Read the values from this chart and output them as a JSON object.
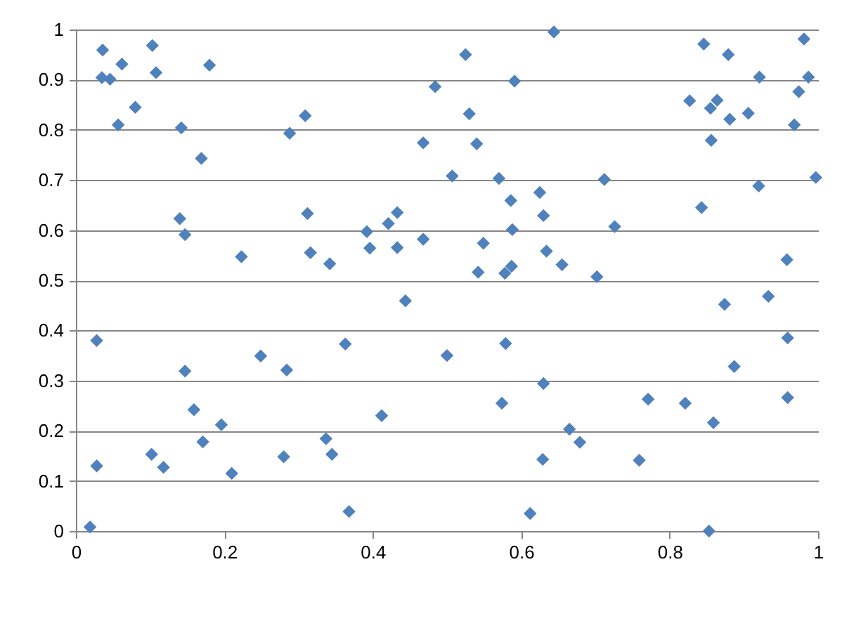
{
  "chart_data": {
    "type": "scatter",
    "marker": "diamond",
    "grid": "y",
    "xlim": [
      0,
      1
    ],
    "xticks": [
      0,
      0.2,
      0.4,
      0.6,
      0.8,
      1
    ],
    "ylim": [
      0,
      1
    ],
    "yticks": [
      0,
      0.1,
      0.2,
      0.3,
      0.4,
      0.5,
      0.6,
      0.7,
      0.8,
      0.9,
      1
    ],
    "series": [
      {
        "color": "#4f81bd",
        "x": [
          0.019,
          0.028,
          0.028,
          0.102,
          0.118,
          0.147,
          0.159,
          0.171,
          0.196,
          0.21,
          0.249,
          0.284,
          0.28,
          0.337,
          0.345,
          0.363,
          0.368,
          0.412,
          0.444,
          0.342,
          0.5,
          0.036,
          0.103,
          0.062,
          0.035,
          0.046,
          0.108,
          0.18,
          0.08,
          0.057,
          0.142,
          0.169,
          0.288,
          0.309,
          0.14,
          0.147,
          0.312,
          0.316,
          0.223,
          0.392,
          0.396,
          0.421,
          0.433,
          0.433,
          0.468,
          0.468,
          0.484,
          0.507,
          0.644,
          0.525,
          0.591,
          0.53,
          0.54,
          0.57,
          0.712,
          0.586,
          0.625,
          0.63,
          0.588,
          0.726,
          0.549,
          0.634,
          0.655,
          0.542,
          0.578,
          0.587,
          0.702,
          0.846,
          0.879,
          0.981,
          0.827,
          0.864,
          0.855,
          0.881,
          0.906,
          0.921,
          0.987,
          0.974,
          0.968,
          0.856,
          0.92,
          0.997,
          0.843,
          0.958,
          0.579,
          0.63,
          0.574,
          0.665,
          0.679,
          0.629,
          0.612,
          0.771,
          0.821,
          0.859,
          0.759,
          0.853,
          0.874,
          0.933,
          0.887,
          0.959,
          0.959
        ],
        "values": [
          0.008,
          0.38,
          0.13,
          0.153,
          0.127,
          0.319,
          0.242,
          0.178,
          0.212,
          0.115,
          0.349,
          0.321,
          0.148,
          0.184,
          0.153,
          0.373,
          0.039,
          0.23,
          0.459,
          0.533,
          0.35,
          0.959,
          0.968,
          0.931,
          0.904,
          0.901,
          0.914,
          0.929,
          0.845,
          0.81,
          0.804,
          0.743,
          0.793,
          0.828,
          0.623,
          0.591,
          0.633,
          0.555,
          0.547,
          0.597,
          0.564,
          0.613,
          0.635,
          0.565,
          0.582,
          0.774,
          0.886,
          0.708,
          0.995,
          0.95,
          0.897,
          0.832,
          0.772,
          0.703,
          0.701,
          0.659,
          0.675,
          0.629,
          0.601,
          0.607,
          0.574,
          0.558,
          0.531,
          0.516,
          0.514,
          0.528,
          0.507,
          0.971,
          0.95,
          0.981,
          0.858,
          0.859,
          0.843,
          0.821,
          0.833,
          0.905,
          0.905,
          0.876,
          0.81,
          0.779,
          0.688,
          0.705,
          0.645,
          0.541,
          0.374,
          0.294,
          0.255,
          0.203,
          0.177,
          0.143,
          0.035,
          0.263,
          0.255,
          0.216,
          0.141,
          0,
          0.452,
          0.468,
          0.328,
          0.385,
          0.266
        ]
      }
    ]
  }
}
